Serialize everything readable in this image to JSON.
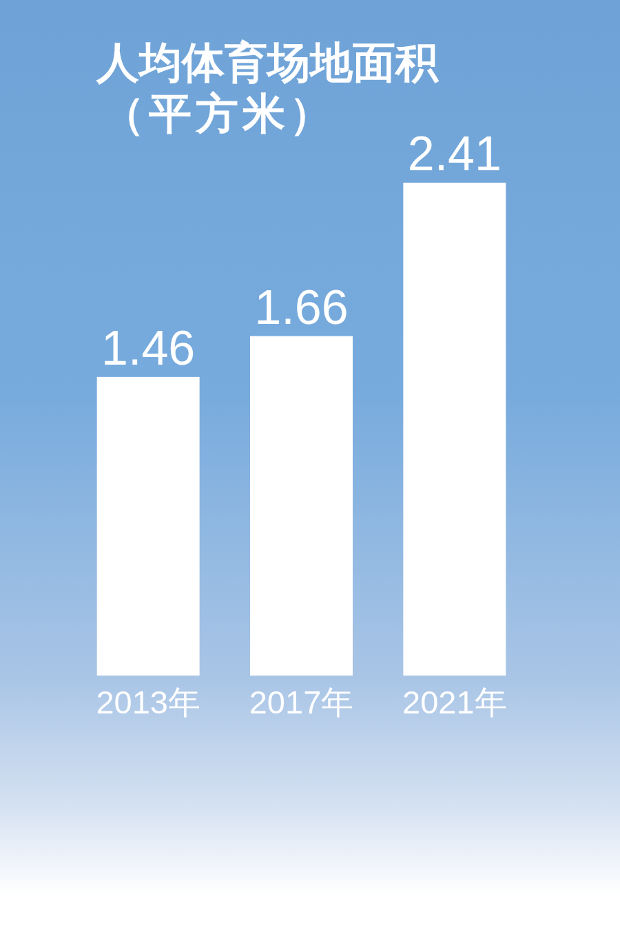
{
  "chart_data": {
    "type": "bar",
    "title": "人均体育场地面积",
    "subtitle": "（平方米）",
    "categories": [
      "2013年",
      "2017年",
      "2021年"
    ],
    "values": [
      1.46,
      1.66,
      2.41
    ],
    "color": "#ffffff",
    "data_labels": true
  }
}
